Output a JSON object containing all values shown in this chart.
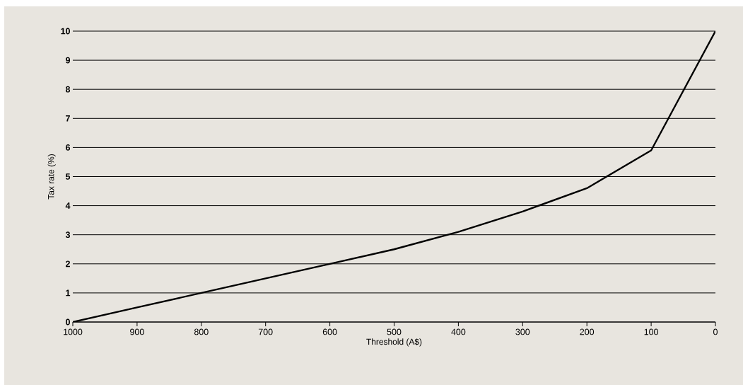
{
  "chart_data": {
    "type": "line",
    "xlabel": "Threshold (A$)",
    "ylabel": "Tax rate (%)",
    "x": [
      1000,
      900,
      800,
      700,
      600,
      500,
      400,
      300,
      200,
      100,
      0
    ],
    "series": [
      {
        "color": "#000000",
        "values": [
          0,
          0.5,
          1.0,
          1.5,
          2.0,
          2.5,
          3.1,
          3.8,
          4.6,
          5.9,
          10
        ]
      }
    ],
    "xlim": [
      1000,
      0
    ],
    "ylim": [
      0,
      10
    ],
    "xticks": [
      1000,
      900,
      800,
      700,
      600,
      500,
      400,
      300,
      200,
      100,
      0
    ],
    "yticks": [
      0,
      1,
      2,
      3,
      4,
      5,
      6,
      7,
      8,
      9,
      10
    ],
    "grid": "y",
    "line_style": "solid"
  }
}
